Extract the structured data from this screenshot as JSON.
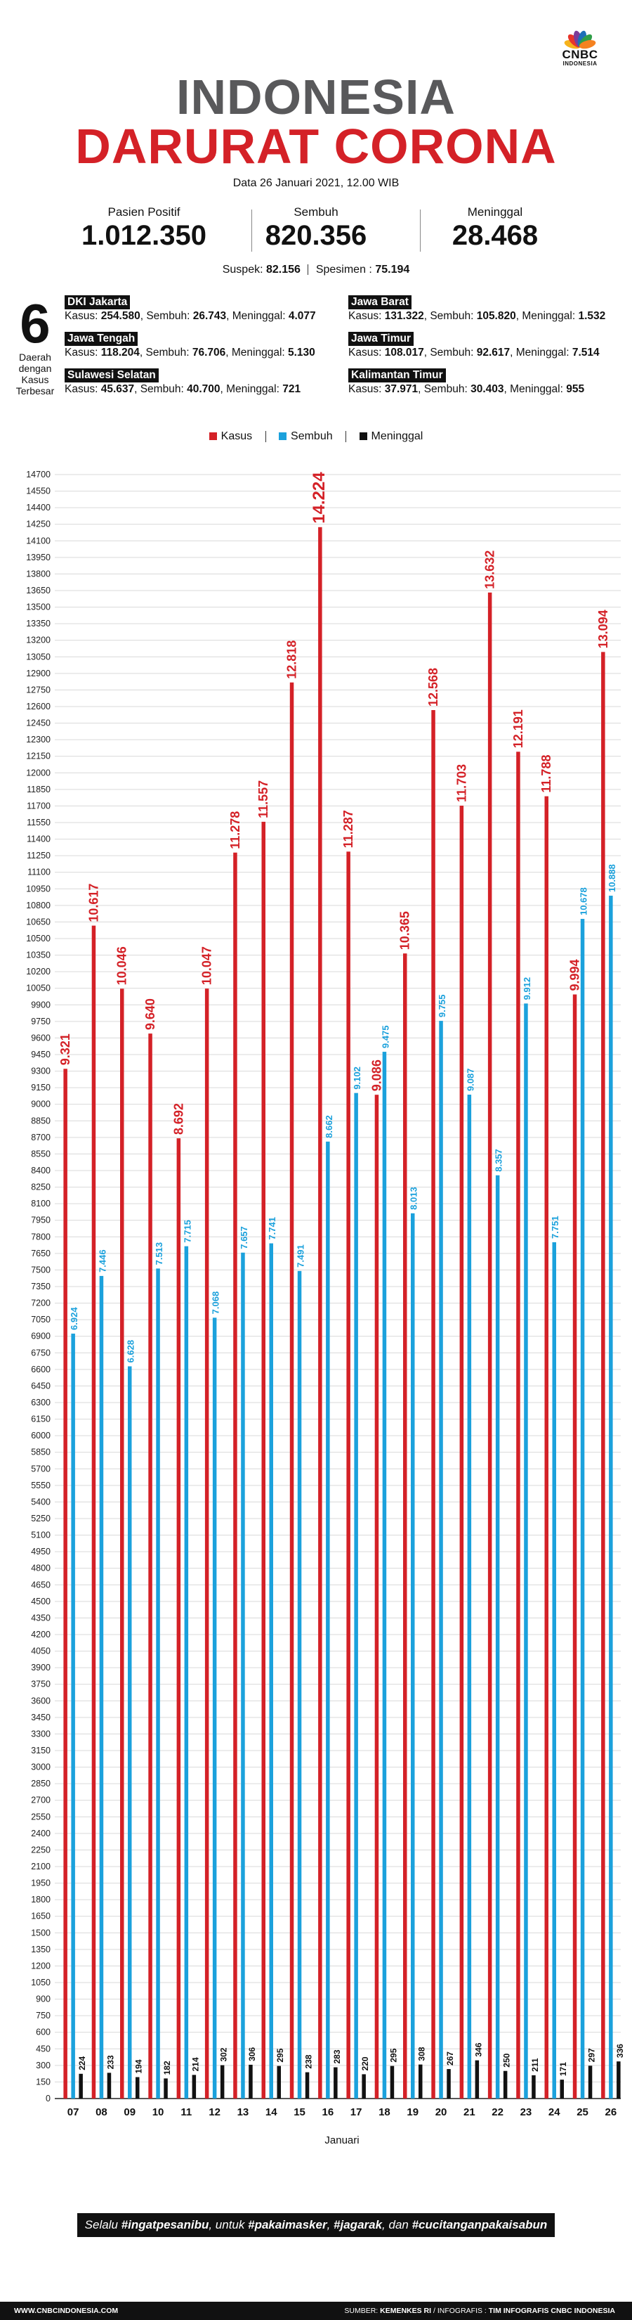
{
  "logo": {
    "line1": "CNBC",
    "line2": "INDONESIA",
    "colors": [
      "#f6b21b",
      "#e8352a",
      "#7d3c98",
      "#1d6fb8",
      "#2f9e48",
      "#f58220"
    ]
  },
  "title": {
    "line1": "INDONESIA",
    "line2": "DARURAT CORONA"
  },
  "date": "Data 26 Januari 2021, 12.00 WIB",
  "stats": [
    {
      "label": "Pasien Positif",
      "value": "1.012.350"
    },
    {
      "label": "Sembuh",
      "value": "820.356"
    },
    {
      "label": "Meninggal",
      "value": "28.468"
    }
  ],
  "suspek": {
    "label": "Suspek:",
    "value": "82.156",
    "spesimen_label": "Spesimen :",
    "spesimen_value": "75.194"
  },
  "top_regions": {
    "number": "6",
    "caption": [
      "Daerah",
      "dengan",
      "Kasus",
      "Terbesar"
    ],
    "items": [
      {
        "name": "DKI Jakarta",
        "kasus_label": "Kasus:",
        "kasus": "254.580",
        "sembuh_label": ", Sembuh:",
        "sembuh": "26.743",
        "meninggal_label": ", Meninggal:",
        "meninggal": "4.077"
      },
      {
        "name": "Jawa Barat",
        "kasus_label": "Kasus:",
        "kasus": "131.322",
        "sembuh_label": ", Sembuh:",
        "sembuh": "105.820",
        "meninggal_label": ", Meninggal:",
        "meninggal": "1.532"
      },
      {
        "name": "Jawa Tengah",
        "kasus_label": "Kasus:",
        "kasus": "118.204",
        "sembuh_label": ", Sembuh:",
        "sembuh": "76.706",
        "meninggal_label": ", Meninggal:",
        "meninggal": "5.130"
      },
      {
        "name": "Jawa Timur",
        "kasus_label": "Kasus:",
        "kasus": "108.017",
        "sembuh_label": ", Sembuh:",
        "sembuh": "92.617",
        "meninggal_label": ", Meninggal:",
        "meninggal": "7.514"
      },
      {
        "name": "Sulawesi Selatan",
        "kasus_label": "Kasus:",
        "kasus": "45.637",
        "sembuh_label": ", Sembuh:",
        "sembuh": "40.700",
        "meninggal_label": ", Meninggal:",
        "meninggal": "721"
      },
      {
        "name": "Kalimantan Timur",
        "kasus_label": "Kasus:",
        "kasus": "37.971",
        "sembuh_label": ", Sembuh:",
        "sembuh": "30.403",
        "meninggal_label": ", Meninggal:",
        "meninggal": "955"
      }
    ]
  },
  "legend": [
    {
      "label": "Kasus",
      "color": "#d42127"
    },
    {
      "label": "Sembuh",
      "color": "#1ba1dc"
    },
    {
      "label": "Meninggal",
      "color": "#111111"
    }
  ],
  "chart_data": {
    "type": "bar",
    "categories": [
      "07",
      "08",
      "09",
      "10",
      "11",
      "12",
      "13",
      "14",
      "15",
      "16",
      "17",
      "18",
      "19",
      "20",
      "21",
      "22",
      "23",
      "24",
      "25",
      "26"
    ],
    "series": [
      {
        "name": "Kasus",
        "color": "#d42127",
        "values": [
          9321,
          10617,
          10046,
          9640,
          8692,
          10047,
          11278,
          11557,
          12818,
          14224,
          11287,
          9086,
          10365,
          12568,
          11703,
          13632,
          12191,
          11788,
          9994,
          13094
        ],
        "labels": [
          "9.321",
          "10.617",
          "10.046",
          "9.640",
          "8.692",
          "10.047",
          "11.278",
          "11.557",
          "12.818",
          "14.224",
          "11.287",
          "9.086",
          "10.365",
          "12.568",
          "11.703",
          "13.632",
          "12.191",
          "11.788",
          "9.994",
          "13.094"
        ]
      },
      {
        "name": "Sembuh",
        "color": "#1ba1dc",
        "values": [
          6924,
          7446,
          6628,
          7513,
          7715,
          7068,
          7657,
          7741,
          7491,
          8662,
          9102,
          9475,
          8013,
          9755,
          9087,
          8357,
          9912,
          7751,
          10678,
          10888
        ],
        "labels": [
          "6.924",
          "7.446",
          "6.628",
          "7.513",
          "7.715",
          "7.068",
          "7.657",
          "7.741",
          "7.491",
          "8.662",
          "9.102",
          "9.475",
          "8.013",
          "9.755",
          "9.087",
          "8.357",
          "9.912",
          "7.751",
          "10.678",
          "10.888"
        ]
      },
      {
        "name": "Meninggal",
        "color": "#111111",
        "values": [
          224,
          233,
          194,
          182,
          214,
          302,
          306,
          295,
          238,
          283,
          220,
          295,
          308,
          267,
          346,
          250,
          211,
          171,
          297,
          336
        ],
        "labels": [
          "224",
          "233",
          "194",
          "182",
          "214",
          "302",
          "306",
          "295",
          "238",
          "283",
          "220",
          "295",
          "308",
          "267",
          "346",
          "250",
          "211",
          "171",
          "297",
          "336"
        ]
      }
    ],
    "xlabel": "Januari",
    "ylabel": "",
    "ylim": [
      0,
      14700
    ],
    "ytick_step": 150,
    "grid": true
  },
  "banner": {
    "p1": "Selalu ",
    "h1": "#ingatpesanibu",
    "p2": ", untuk ",
    "h2": "#pakaimasker",
    "p3": ", ",
    "h3": "#jagarak",
    "p4": ", dan ",
    "h4": "#cucitanganpakaisabun"
  },
  "footer": {
    "site": "WWW.CNBCINDONESIA.COM",
    "source_label": "SUMBER: ",
    "source": "KEMENKES RI",
    "credit_label": " / INFOGRAFIS : ",
    "credit": "TIM INFOGRAFIS CNBC INDONESIA"
  }
}
